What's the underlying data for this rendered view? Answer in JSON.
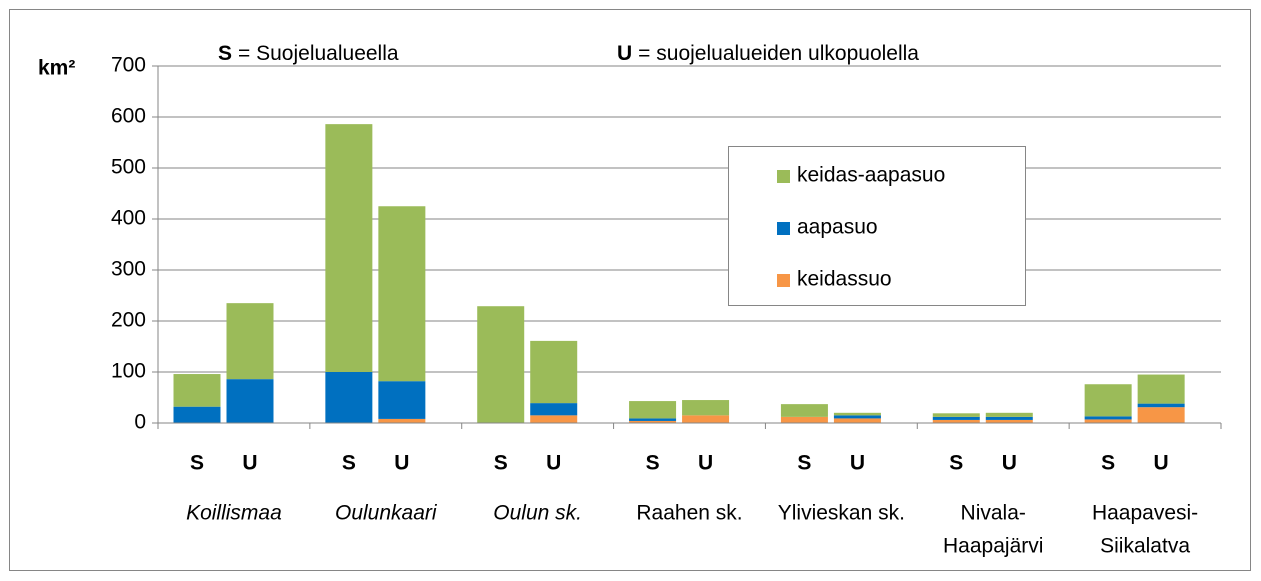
{
  "chart_data": {
    "type": "stacked-bar",
    "y_label": "km²",
    "annotations": [
      {
        "key": "S",
        "text": "= Suojelualueella"
      },
      {
        "key": "U",
        "text": "= suojelualueiden ulkopuolella"
      }
    ],
    "groups": [
      {
        "lines": [
          "Koillismaa"
        ],
        "italic": true
      },
      {
        "lines": [
          "Oulunkaari"
        ],
        "italic": true
      },
      {
        "lines": [
          "Oulun sk."
        ],
        "italic": true
      },
      {
        "lines": [
          "Raahen sk."
        ],
        "italic": false
      },
      {
        "lines": [
          "Ylivieskan sk."
        ],
        "italic": false
      },
      {
        "lines": [
          "Nivala-",
          "Haapajärvi"
        ],
        "italic": false
      },
      {
        "lines": [
          "Haapavesi-",
          "Siikalatva"
        ],
        "italic": false
      }
    ],
    "categories": [
      "S",
      "U",
      "S",
      "U",
      "S",
      "U",
      "S",
      "U",
      "S",
      "U",
      "S",
      "U",
      "S",
      "U"
    ],
    "series": [
      {
        "name": "keidassuo",
        "color": "#f79646",
        "values": [
          0,
          0,
          0,
          8,
          0,
          15,
          4,
          15,
          12,
          9,
          6,
          6,
          7,
          31
        ]
      },
      {
        "name": "aapasuo",
        "color": "#0070c0",
        "values": [
          32,
          86,
          100,
          74,
          0,
          24,
          5,
          0,
          0,
          6,
          6,
          6,
          6,
          7
        ]
      },
      {
        "name": "keidas-aapasuo",
        "color": "#9bbb59",
        "values": [
          64,
          149,
          486,
          343,
          229,
          122,
          34,
          30,
          25,
          5,
          7,
          8,
          63,
          57
        ]
      }
    ],
    "ylim": [
      0,
      700
    ],
    "yticks": [
      0,
      100,
      200,
      300,
      400,
      500,
      600,
      700
    ],
    "grid": true,
    "legend": "upper right"
  }
}
